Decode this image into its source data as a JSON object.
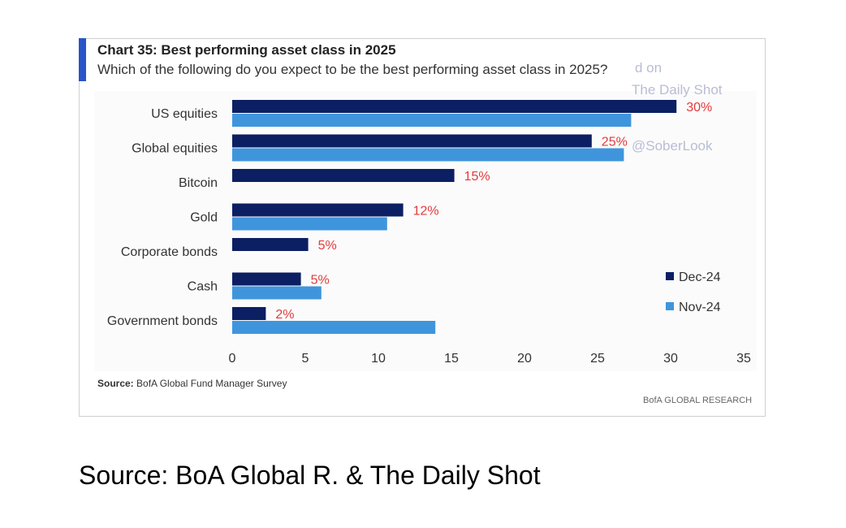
{
  "chart_data": {
    "type": "bar",
    "orientation": "horizontal",
    "title": "Chart 35: Best performing asset class in 2025",
    "subtitle": "Which of the following do you expect to be the best performing asset class in 2025?",
    "categories": [
      "US equities",
      "Global equities",
      "Bitcoin",
      "Gold",
      "Corporate bonds",
      "Cash",
      "Government bonds"
    ],
    "series": [
      {
        "name": "Dec-24",
        "color": "#0c1f63",
        "values": [
          30.4,
          24.6,
          15.2,
          11.7,
          5.2,
          4.7,
          2.3
        ],
        "labels": [
          "30%",
          "25%",
          "15%",
          "12%",
          "5%",
          "5%",
          "2%"
        ]
      },
      {
        "name": "Nov-24",
        "color": "#3f95dc",
        "values": [
          27.3,
          26.8,
          null,
          10.6,
          null,
          6.1,
          13.9
        ]
      }
    ],
    "xlim": [
      0,
      35
    ],
    "xticks": [
      "0",
      "5",
      "10",
      "15",
      "20",
      "25",
      "30",
      "35"
    ],
    "legend": "right-middle",
    "label_color": "#e23b3b",
    "source_label": "Source:",
    "source_text": " BofA Global Fund Manager Survey",
    "brand": "BofA GLOBAL RESEARCH",
    "watermark": [
      "d on",
      "The Daily Shot",
      "@SoberLook"
    ]
  },
  "caption": "Source: BoA Global R. & The Daily Shot"
}
